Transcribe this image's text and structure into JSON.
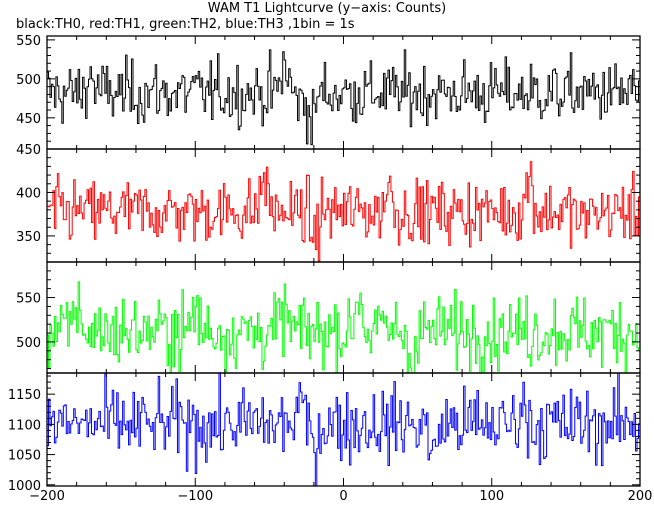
{
  "title": "WAM T1 Lightcurve (y−axis: Counts)",
  "subtitle": "black:TH0, red:TH1, green:TH2, blue:TH3 ,1bin = 1s",
  "chart_data": {
    "type": "line",
    "x_range": [
      -200,
      200
    ],
    "x_ticks": [
      -200,
      -100,
      0,
      100,
      200
    ],
    "x_tick_labels": [
      "−200",
      "−100",
      "0",
      "100",
      "200"
    ],
    "bin_seconds": 1,
    "series": [
      {
        "name": "TH0",
        "color": "#000000",
        "ylim": [
          410,
          555
        ],
        "y_ticks": [
          450,
          500,
          550
        ],
        "mean": 482,
        "noise_sd": 20,
        "features": [
          [
            -171,
            505
          ],
          [
            -40,
            520
          ],
          [
            -30,
            470
          ],
          [
            -22,
            440
          ]
        ]
      },
      {
        "name": "TH1",
        "color": "#ff0000",
        "ylim": [
          320,
          450
        ],
        "y_ticks": [
          350,
          400,
          450
        ],
        "mean": 378,
        "noise_sd": 18,
        "features": [
          [
            -54,
            420
          ],
          [
            -20,
            345
          ],
          [
            30,
            410
          ],
          [
            125,
            420
          ],
          [
            160,
            360
          ]
        ]
      },
      {
        "name": "TH2",
        "color": "#00ff00",
        "ylim": [
          465,
          590
        ],
        "y_ticks": [
          500,
          550
        ],
        "mean": 512,
        "noise_sd": 20,
        "features": [
          [
            -180,
            545
          ],
          [
            -100,
            540
          ],
          [
            -40,
            535
          ],
          [
            10,
            560
          ],
          [
            45,
            475
          ]
        ]
      },
      {
        "name": "TH3",
        "color": "#0000ff",
        "ylim": [
          998,
          1185
        ],
        "y_ticks": [
          1000,
          1050,
          1100,
          1150
        ],
        "mean": 1100,
        "noise_sd": 30,
        "features": [
          [
            -30,
            1140
          ],
          [
            -20,
            1060
          ],
          [
            60,
            1040
          ],
          [
            120,
            1140
          ]
        ]
      }
    ]
  }
}
